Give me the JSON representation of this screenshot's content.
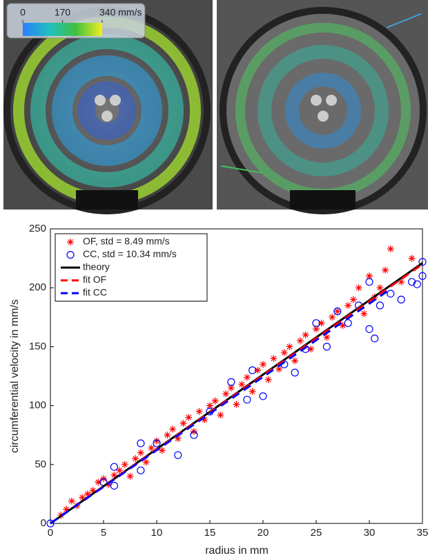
{
  "chart_data": [
    {
      "type": "colorbar",
      "lim": [
        0,
        340
      ],
      "colors": [
        "#2a7fff",
        "#20c0c0",
        "#40c040",
        "#f0f020"
      ],
      "ticks": [
        0,
        170,
        {
          "value": 340,
          "label": "340 mm/s"
        }
      ]
    },
    {
      "type": "scatter",
      "xlabel": "radius in mm",
      "ylabel": "circumferential velocity in mm/s",
      "xlim": [
        0,
        35
      ],
      "ylim": [
        0,
        250
      ],
      "xticks": [
        0,
        5,
        10,
        15,
        20,
        25,
        30,
        35
      ],
      "yticks": [
        0,
        50,
        100,
        150,
        200,
        250
      ],
      "grid": false,
      "legend": "upper left",
      "series": [
        {
          "name": "OF, std = 8.49 mm/s",
          "color": "#ff0000",
          "marker": "star",
          "x": [
            1,
            1.5,
            2,
            2.5,
            3,
            3.5,
            4,
            4.5,
            5,
            5.5,
            6,
            6.5,
            7,
            7.5,
            8,
            8.5,
            9,
            9.5,
            10,
            10.5,
            11,
            11.5,
            12,
            12.5,
            13,
            13.5,
            14,
            14.5,
            15,
            15.5,
            16,
            16.5,
            17,
            17.5,
            18,
            18.5,
            19,
            19.5,
            20,
            20.5,
            21,
            21.5,
            22,
            22.5,
            23,
            23.5,
            24,
            24.5,
            25,
            25.5,
            26,
            26.5,
            27,
            27.5,
            28,
            28.5,
            29,
            29.5,
            30,
            30.5,
            31,
            31.5,
            32,
            33,
            34
          ],
          "values": [
            7,
            12,
            19,
            15,
            22,
            25,
            28,
            35,
            38,
            33,
            41,
            45,
            50,
            40,
            55,
            60,
            52,
            64,
            70,
            62,
            75,
            80,
            72,
            85,
            90,
            78,
            95,
            88,
            100,
            104,
            92,
            110,
            115,
            101,
            118,
            124,
            112,
            130,
            135,
            122,
            140,
            131,
            145,
            150,
            138,
            155,
            160,
            148,
            165,
            170,
            158,
            175,
            180,
            168,
            185,
            190,
            200,
            178,
            210,
            192,
            200,
            215,
            233,
            205,
            225
          ]
        },
        {
          "name": "CC, std = 10.34 mm/s",
          "color": "#0000ff",
          "marker": "circle",
          "x": [
            0,
            5,
            6,
            6,
            8.5,
            8.5,
            10,
            12,
            13.5,
            15,
            17,
            18.5,
            19,
            20,
            22,
            23,
            24,
            25,
            26,
            27,
            28,
            29,
            30,
            30.5,
            30,
            31,
            32,
            33,
            34,
            35,
            35,
            34.5
          ],
          "values": [
            0,
            35,
            48,
            32,
            45,
            68,
            68,
            58,
            75,
            95,
            120,
            105,
            130,
            108,
            135,
            128,
            148,
            170,
            150,
            180,
            170,
            185,
            165,
            157,
            205,
            185,
            195,
            190,
            205,
            222,
            210,
            203
          ]
        },
        {
          "name": "theory",
          "color": "#000000",
          "marker": "line",
          "x": [
            0,
            35
          ],
          "values": [
            0,
            221
          ]
        },
        {
          "name": "fit OF",
          "color": "#ff0000",
          "marker": "dash",
          "x": [
            0,
            35
          ],
          "values": [
            0,
            220
          ]
        },
        {
          "name": "fit CC",
          "color": "#0000ff",
          "marker": "dash",
          "x": [
            0,
            32
          ],
          "values": [
            0,
            199
          ]
        }
      ]
    }
  ]
}
